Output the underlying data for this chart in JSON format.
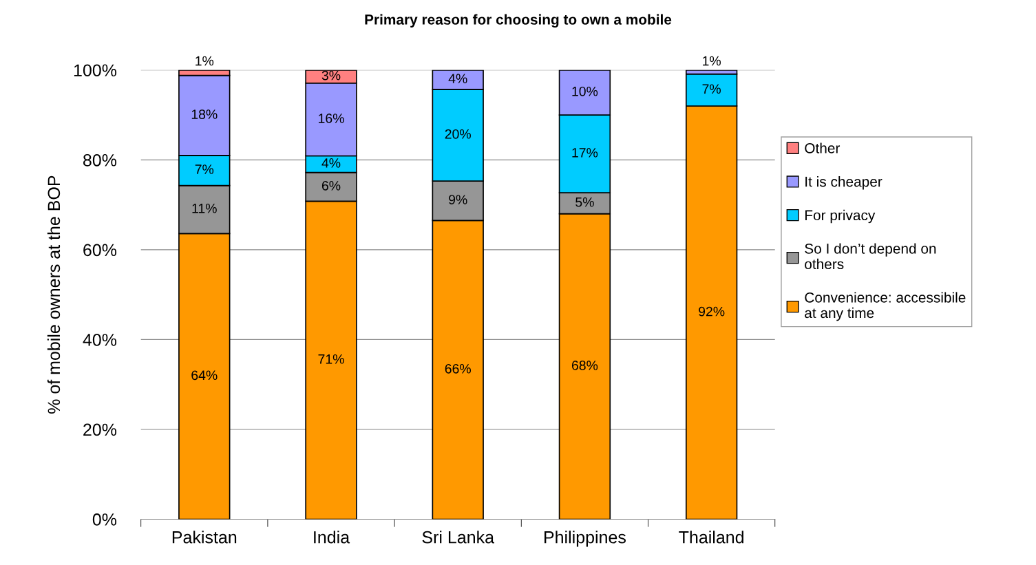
{
  "chart_data": {
    "type": "bar",
    "title": "Primary reason for choosing to own a mobile",
    "ylabel": "% of mobile owners at the BOP",
    "categories": [
      "Pakistan",
      "India",
      "Sri Lanka",
      "Philippines",
      "Thailand"
    ],
    "stacked": true,
    "series": [
      {
        "name": "Convenience: accessibile\nat any time",
        "color": "#ff9900",
        "values": [
          63.6,
          70.8,
          66.5,
          68.0,
          92.0
        ],
        "value_labels": [
          "64%",
          "71%",
          "66%",
          "68%",
          "92%"
        ]
      },
      {
        "name": "So I don’t depend on\nothers",
        "color": "#969696",
        "values": [
          10.7,
          6.4,
          8.8,
          4.7,
          null
        ],
        "value_labels": [
          "11%",
          "6%",
          "9%",
          "5%",
          null
        ]
      },
      {
        "name": "For privacy",
        "color": "#00ccff",
        "values": [
          6.7,
          3.7,
          20.4,
          17.3,
          7.1
        ],
        "value_labels": [
          "7%",
          "4%",
          "20%",
          "17%",
          "7%"
        ]
      },
      {
        "name": "It is cheaper",
        "color": "#9999ff",
        "values": [
          17.8,
          16.2,
          4.3,
          10.0,
          0.9
        ],
        "value_labels": [
          "18%",
          "16%",
          "4%",
          "10%",
          "1%"
        ]
      },
      {
        "name": "Other",
        "color": "#ff8080",
        "values": [
          1.2,
          2.9,
          null,
          null,
          null
        ],
        "value_labels": [
          "1%",
          "3%",
          null,
          null,
          null
        ]
      }
    ],
    "ylim": [
      0,
      100
    ],
    "yticks": [
      {
        "value": 0,
        "label": "0%"
      },
      {
        "value": 20,
        "label": "20%"
      },
      {
        "value": 40,
        "label": "40%"
      },
      {
        "value": 60,
        "label": "60%"
      },
      {
        "value": 80,
        "label": "80%"
      },
      {
        "value": 100,
        "label": "100%"
      }
    ],
    "grid": "y",
    "legend": "right"
  }
}
